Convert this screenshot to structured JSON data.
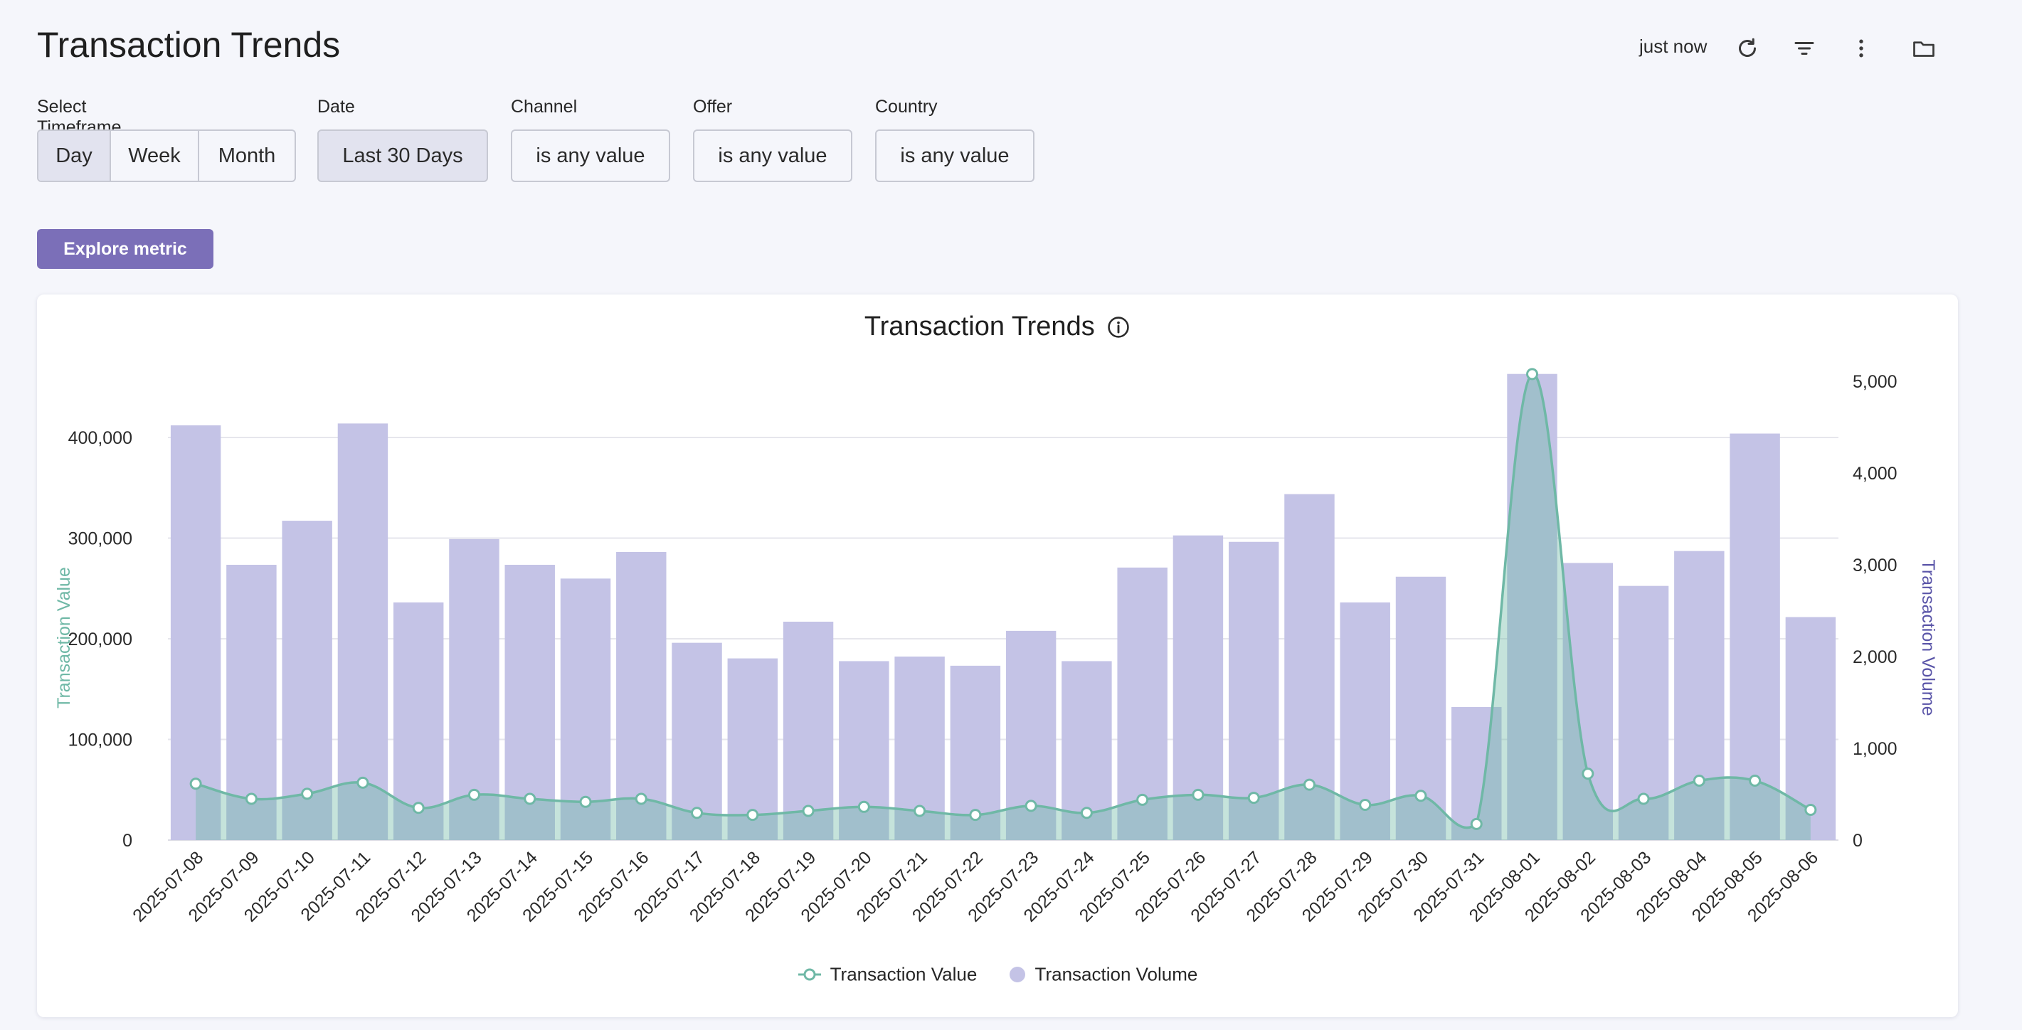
{
  "header": {
    "title": "Transaction Trends",
    "updated": "just now",
    "icons": [
      "refresh-icon",
      "filter-icon",
      "more-vertical-icon",
      "folder-icon"
    ]
  },
  "filters": {
    "timeframe": {
      "label": "Select Timeframe",
      "options": [
        "Day",
        "Week",
        "Month"
      ],
      "selected": "Day"
    },
    "date": {
      "label": "Date",
      "value": "Last 30 Days"
    },
    "channel": {
      "label": "Channel",
      "value": "is any value"
    },
    "offer": {
      "label": "Offer",
      "value": "is any value"
    },
    "country": {
      "label": "Country",
      "value": "is any value"
    }
  },
  "explore_label": "Explore metric",
  "colors": {
    "accent": "#7b6fb8",
    "value_line": "#6fb8a6",
    "volume_bar": "#c4c3e6",
    "left_axis_label": "#6fb8a6",
    "right_axis_label": "#5a55a8"
  },
  "chart_data": {
    "type": "bar",
    "title": "Transaction Trends",
    "info_icon": "info-icon",
    "categories": [
      "2025-07-08",
      "2025-07-09",
      "2025-07-10",
      "2025-07-11",
      "2025-07-12",
      "2025-07-13",
      "2025-07-14",
      "2025-07-15",
      "2025-07-16",
      "2025-07-17",
      "2025-07-18",
      "2025-07-19",
      "2025-07-20",
      "2025-07-21",
      "2025-07-22",
      "2025-07-23",
      "2025-07-24",
      "2025-07-25",
      "2025-07-26",
      "2025-07-27",
      "2025-07-28",
      "2025-07-29",
      "2025-07-30",
      "2025-07-31",
      "2025-08-01",
      "2025-08-02",
      "2025-08-03",
      "2025-08-04",
      "2025-08-05",
      "2025-08-06"
    ],
    "series": [
      {
        "name": "Transaction Volume",
        "type": "bar",
        "axis": "right",
        "values": [
          4520,
          3000,
          3480,
          4540,
          2590,
          3280,
          3000,
          2850,
          3140,
          2150,
          1980,
          2380,
          1950,
          2000,
          1900,
          2280,
          1950,
          2970,
          3320,
          3250,
          3770,
          2590,
          2870,
          1450,
          5080,
          3020,
          2770,
          3150,
          4430,
          2430
        ]
      },
      {
        "name": "Transaction Value",
        "type": "line",
        "axis": "left",
        "values": [
          56000,
          41000,
          46000,
          57000,
          32000,
          45000,
          41000,
          38000,
          41000,
          27000,
          25000,
          29000,
          33000,
          29000,
          25000,
          34000,
          27000,
          40000,
          45000,
          42000,
          55000,
          35000,
          44000,
          16000,
          463000,
          66000,
          41000,
          59000,
          59000,
          30000
        ]
      }
    ],
    "y_left": {
      "label": "Transaction Value",
      "ticks": [
        "0",
        "100,000",
        "200,000",
        "300,000",
        "400,000"
      ],
      "ylim": [
        0,
        400000
      ]
    },
    "y_right": {
      "label": "Transaction Volume",
      "ticks": [
        "0",
        "1,000",
        "2,000",
        "3,000",
        "4,000",
        "5,000"
      ],
      "ylim": [
        0,
        5000
      ]
    },
    "grid": true,
    "legend": {
      "position": "bottom-center",
      "items": [
        "Transaction Value",
        "Transaction Volume"
      ]
    }
  }
}
